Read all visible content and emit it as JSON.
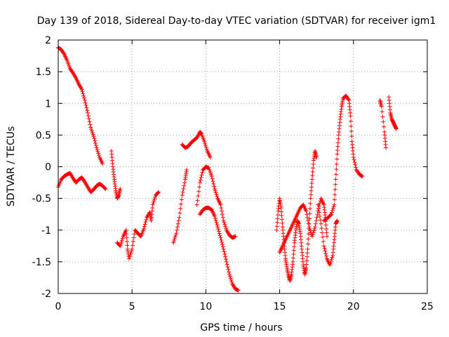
{
  "chart_data": {
    "type": "scatter",
    "title": "Day 139 of 2018, Sidereal Day-to-day VTEC variation (SDTVAR) for receiver igm1",
    "xlabel": "GPS time / hours",
    "ylabel": "SDTVAR / TECUs",
    "xlim": [
      0,
      25
    ],
    "ylim": [
      -2,
      2
    ],
    "xticks": [
      0,
      5,
      10,
      15,
      20,
      25
    ],
    "yticks": [
      -2,
      -1.5,
      -1,
      -0.5,
      0,
      0.5,
      1,
      1.5,
      2
    ],
    "xtick_labels": [
      "0",
      "5",
      "10",
      "15",
      "20",
      "25"
    ],
    "ytick_labels": [
      "-2",
      "-1.5",
      "-1",
      "-0.5",
      "0",
      "0.5",
      "1",
      "1.5",
      "2"
    ],
    "grid": true,
    "marker": "+",
    "series": [
      {
        "name": "SDTVAR",
        "color": "#ff0000",
        "segments": [
          [
            [
              0.0,
              1.88
            ],
            [
              0.2,
              1.85
            ],
            [
              0.4,
              1.78
            ],
            [
              0.6,
              1.68
            ],
            [
              0.8,
              1.55
            ],
            [
              1.0,
              1.48
            ],
            [
              1.2,
              1.4
            ],
            [
              1.4,
              1.3
            ],
            [
              1.6,
              1.22
            ],
            [
              1.8,
              1.05
            ],
            [
              2.0,
              0.85
            ],
            [
              2.2,
              0.62
            ],
            [
              2.4,
              0.48
            ],
            [
              2.6,
              0.3
            ],
            [
              2.8,
              0.15
            ],
            [
              3.0,
              0.05
            ]
          ],
          [
            [
              0.0,
              -0.32
            ],
            [
              0.2,
              -0.2
            ],
            [
              0.4,
              -0.15
            ],
            [
              0.6,
              -0.12
            ],
            [
              0.8,
              -0.1
            ],
            [
              1.0,
              -0.18
            ],
            [
              1.2,
              -0.25
            ],
            [
              1.4,
              -0.2
            ],
            [
              1.6,
              -0.17
            ],
            [
              1.8,
              -0.24
            ],
            [
              2.0,
              -0.32
            ],
            [
              2.2,
              -0.4
            ],
            [
              2.4,
              -0.36
            ],
            [
              2.6,
              -0.3
            ],
            [
              2.8,
              -0.27
            ],
            [
              3.0,
              -0.3
            ],
            [
              3.2,
              -0.35
            ]
          ],
          [
            [
              3.6,
              0.25
            ],
            [
              3.7,
              0.0
            ],
            [
              3.8,
              -0.2
            ],
            [
              3.9,
              -0.38
            ],
            [
              4.0,
              -0.5
            ],
            [
              4.1,
              -0.45
            ],
            [
              4.2,
              -0.35
            ]
          ],
          [
            [
              4.0,
              -1.2
            ],
            [
              4.2,
              -1.25
            ],
            [
              4.4,
              -1.1
            ],
            [
              4.6,
              -1.0
            ],
            [
              4.7,
              -1.3
            ],
            [
              4.8,
              -1.45
            ],
            [
              5.0,
              -1.3
            ],
            [
              5.2,
              -1.0
            ],
            [
              5.4,
              -1.05
            ],
            [
              5.6,
              -1.1
            ],
            [
              5.8,
              -0.98
            ],
            [
              6.0,
              -0.8
            ],
            [
              6.2,
              -0.72
            ],
            [
              6.3,
              -0.85
            ],
            [
              6.4,
              -0.6
            ],
            [
              6.6,
              -0.45
            ],
            [
              6.8,
              -0.4
            ]
          ],
          [
            [
              7.8,
              -1.2
            ],
            [
              8.0,
              -1.05
            ],
            [
              8.2,
              -0.8
            ],
            [
              8.4,
              -0.45
            ],
            [
              8.6,
              -0.2
            ],
            [
              8.7,
              -0.05
            ]
          ],
          [
            [
              8.4,
              0.35
            ],
            [
              8.6,
              0.3
            ],
            [
              8.8,
              0.32
            ],
            [
              9.0,
              0.38
            ],
            [
              9.2,
              0.42
            ],
            [
              9.4,
              0.46
            ],
            [
              9.6,
              0.55
            ],
            [
              9.7,
              0.52
            ],
            [
              9.9,
              0.4
            ],
            [
              10.1,
              0.25
            ],
            [
              10.3,
              0.15
            ]
          ],
          [
            [
              9.4,
              -0.6
            ],
            [
              9.6,
              -0.25
            ],
            [
              9.8,
              -0.05
            ],
            [
              10.0,
              0.0
            ],
            [
              10.2,
              -0.02
            ],
            [
              10.4,
              -0.15
            ],
            [
              10.6,
              -0.35
            ],
            [
              10.8,
              -0.5
            ],
            [
              11.0,
              -0.6
            ],
            [
              11.2,
              -0.85
            ],
            [
              11.4,
              -1.0
            ],
            [
              11.6,
              -1.08
            ],
            [
              11.8,
              -1.12
            ],
            [
              12.0,
              -1.1
            ]
          ],
          [
            [
              9.6,
              -0.75
            ],
            [
              9.8,
              -0.68
            ],
            [
              10.0,
              -0.65
            ],
            [
              10.2,
              -0.65
            ],
            [
              10.4,
              -0.68
            ],
            [
              10.6,
              -0.78
            ],
            [
              10.8,
              -0.95
            ],
            [
              11.0,
              -1.12
            ],
            [
              11.2,
              -1.3
            ],
            [
              11.4,
              -1.5
            ],
            [
              11.6,
              -1.7
            ],
            [
              11.8,
              -1.85
            ],
            [
              12.0,
              -1.93
            ],
            [
              12.2,
              -1.95
            ]
          ],
          [
            [
              14.8,
              -1.0
            ],
            [
              14.9,
              -0.7
            ],
            [
              15.0,
              -0.5
            ],
            [
              15.1,
              -0.65
            ],
            [
              15.2,
              -0.95
            ],
            [
              15.3,
              -1.2
            ],
            [
              15.4,
              -1.45
            ],
            [
              15.5,
              -1.6
            ],
            [
              15.6,
              -1.72
            ],
            [
              15.7,
              -1.8
            ],
            [
              15.8,
              -1.7
            ],
            [
              15.9,
              -1.5
            ],
            [
              16.0,
              -1.2
            ],
            [
              16.1,
              -1.0
            ],
            [
              16.2,
              -0.85
            ],
            [
              16.3,
              -0.9
            ],
            [
              16.4,
              -1.05
            ],
            [
              16.5,
              -1.3
            ],
            [
              16.6,
              -1.55
            ],
            [
              16.7,
              -1.7
            ],
            [
              16.8,
              -1.6
            ],
            [
              16.9,
              -1.3
            ],
            [
              17.0,
              -0.9
            ],
            [
              17.1,
              -0.5
            ],
            [
              17.2,
              -0.2
            ],
            [
              17.3,
              0.1
            ],
            [
              17.4,
              0.25
            ],
            [
              17.5,
              0.15
            ]
          ],
          [
            [
              15.0,
              -1.35
            ],
            [
              15.2,
              -1.25
            ],
            [
              15.4,
              -1.15
            ],
            [
              15.6,
              -1.05
            ],
            [
              15.8,
              -0.95
            ],
            [
              16.0,
              -0.85
            ],
            [
              16.2,
              -0.75
            ],
            [
              16.4,
              -0.65
            ],
            [
              16.6,
              -0.6
            ],
            [
              16.8,
              -0.7
            ],
            [
              17.0,
              -0.95
            ],
            [
              17.2,
              -1.1
            ],
            [
              17.4,
              -0.95
            ],
            [
              17.6,
              -0.7
            ],
            [
              17.8,
              -0.5
            ],
            [
              18.0,
              -0.6
            ],
            [
              18.1,
              -0.8
            ],
            [
              18.2,
              -1.1
            ]
          ],
          [
            [
              17.6,
              -0.6
            ],
            [
              17.8,
              -0.9
            ],
            [
              18.0,
              -1.25
            ],
            [
              18.2,
              -1.45
            ],
            [
              18.4,
              -1.55
            ],
            [
              18.6,
              -1.4
            ],
            [
              18.7,
              -1.15
            ],
            [
              18.8,
              -0.9
            ],
            [
              18.9,
              -0.85
            ]
          ],
          [
            [
              18.0,
              -0.85
            ],
            [
              18.3,
              -0.8
            ],
            [
              18.5,
              -0.75
            ],
            [
              18.7,
              -0.6
            ],
            [
              18.8,
              -0.2
            ],
            [
              18.9,
              0.2
            ],
            [
              19.0,
              0.5
            ],
            [
              19.1,
              0.75
            ],
            [
              19.2,
              0.95
            ],
            [
              19.3,
              1.08
            ],
            [
              19.5,
              1.12
            ],
            [
              19.7,
              1.05
            ],
            [
              19.8,
              0.8
            ],
            [
              19.9,
              0.4
            ],
            [
              20.0,
              0.15
            ],
            [
              20.2,
              -0.05
            ],
            [
              20.4,
              -0.12
            ],
            [
              20.6,
              -0.15
            ]
          ],
          [
            [
              21.8,
              1.05
            ],
            [
              21.9,
              0.95
            ],
            [
              22.1,
              0.55
            ],
            [
              22.2,
              0.3
            ]
          ],
          [
            [
              22.4,
              1.1
            ],
            [
              22.5,
              0.85
            ],
            [
              22.6,
              0.75
            ],
            [
              22.7,
              0.7
            ],
            [
              22.8,
              0.65
            ],
            [
              22.9,
              0.6
            ]
          ]
        ]
      }
    ]
  }
}
